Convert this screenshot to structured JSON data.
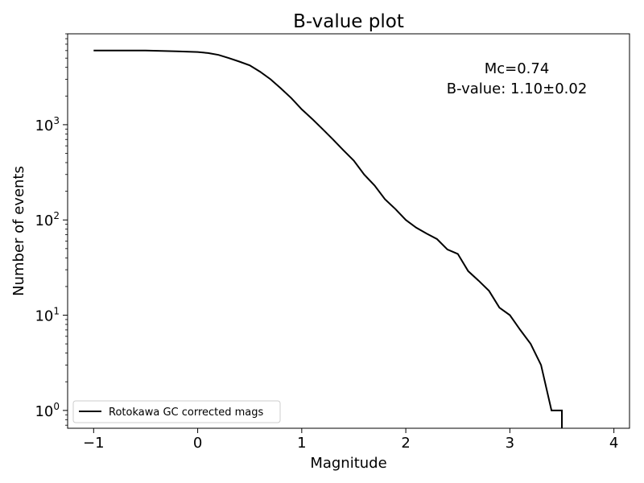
{
  "chart_data": {
    "type": "line",
    "title": "B-value plot",
    "xlabel": "Magnitude",
    "ylabel": "Number of events",
    "xscale": "linear",
    "yscale": "log",
    "xlim": [
      -1.25,
      4.15
    ],
    "ylim": [
      0.65,
      9000
    ],
    "grid": false,
    "x_ticks": [
      -1,
      0,
      1,
      2,
      3,
      4
    ],
    "x_tick_labels": [
      "−1",
      "0",
      "1",
      "2",
      "3",
      "4"
    ],
    "y_ticks": [
      1,
      10,
      100,
      1000
    ],
    "y_tick_bases": [
      "10",
      "10",
      "10",
      "10"
    ],
    "y_tick_exponents": [
      "0",
      "1",
      "2",
      "3"
    ],
    "annotations": [
      "Mc=0.74",
      "B-value: 1.10±0.02"
    ],
    "legend_position": "lower-left",
    "colors": {
      "series": "#000000",
      "axes": "#000000",
      "background": "#ffffff",
      "legend_border": "#cccccc"
    },
    "series": [
      {
        "name": "Rotokawa GC corrected mags",
        "x": [
          -1.0,
          -0.5,
          -0.2,
          0.0,
          0.1,
          0.2,
          0.3,
          0.4,
          0.5,
          0.6,
          0.7,
          0.8,
          0.9,
          1.0,
          1.1,
          1.2,
          1.3,
          1.4,
          1.5,
          1.6,
          1.7,
          1.8,
          1.9,
          2.0,
          2.1,
          2.2,
          2.3,
          2.4,
          2.5,
          2.6,
          2.7,
          2.8,
          2.9,
          3.0,
          3.1,
          3.2,
          3.3,
          3.4,
          3.5,
          3.5
        ],
        "y": [
          6000,
          6000,
          5900,
          5800,
          5650,
          5400,
          5000,
          4600,
          4200,
          3600,
          3000,
          2400,
          1900,
          1450,
          1150,
          900,
          700,
          540,
          420,
          300,
          230,
          165,
          130,
          100,
          83,
          72,
          63,
          49,
          44,
          29,
          23,
          18,
          12,
          10,
          7,
          5,
          3,
          1,
          1,
          0.5
        ]
      }
    ]
  }
}
